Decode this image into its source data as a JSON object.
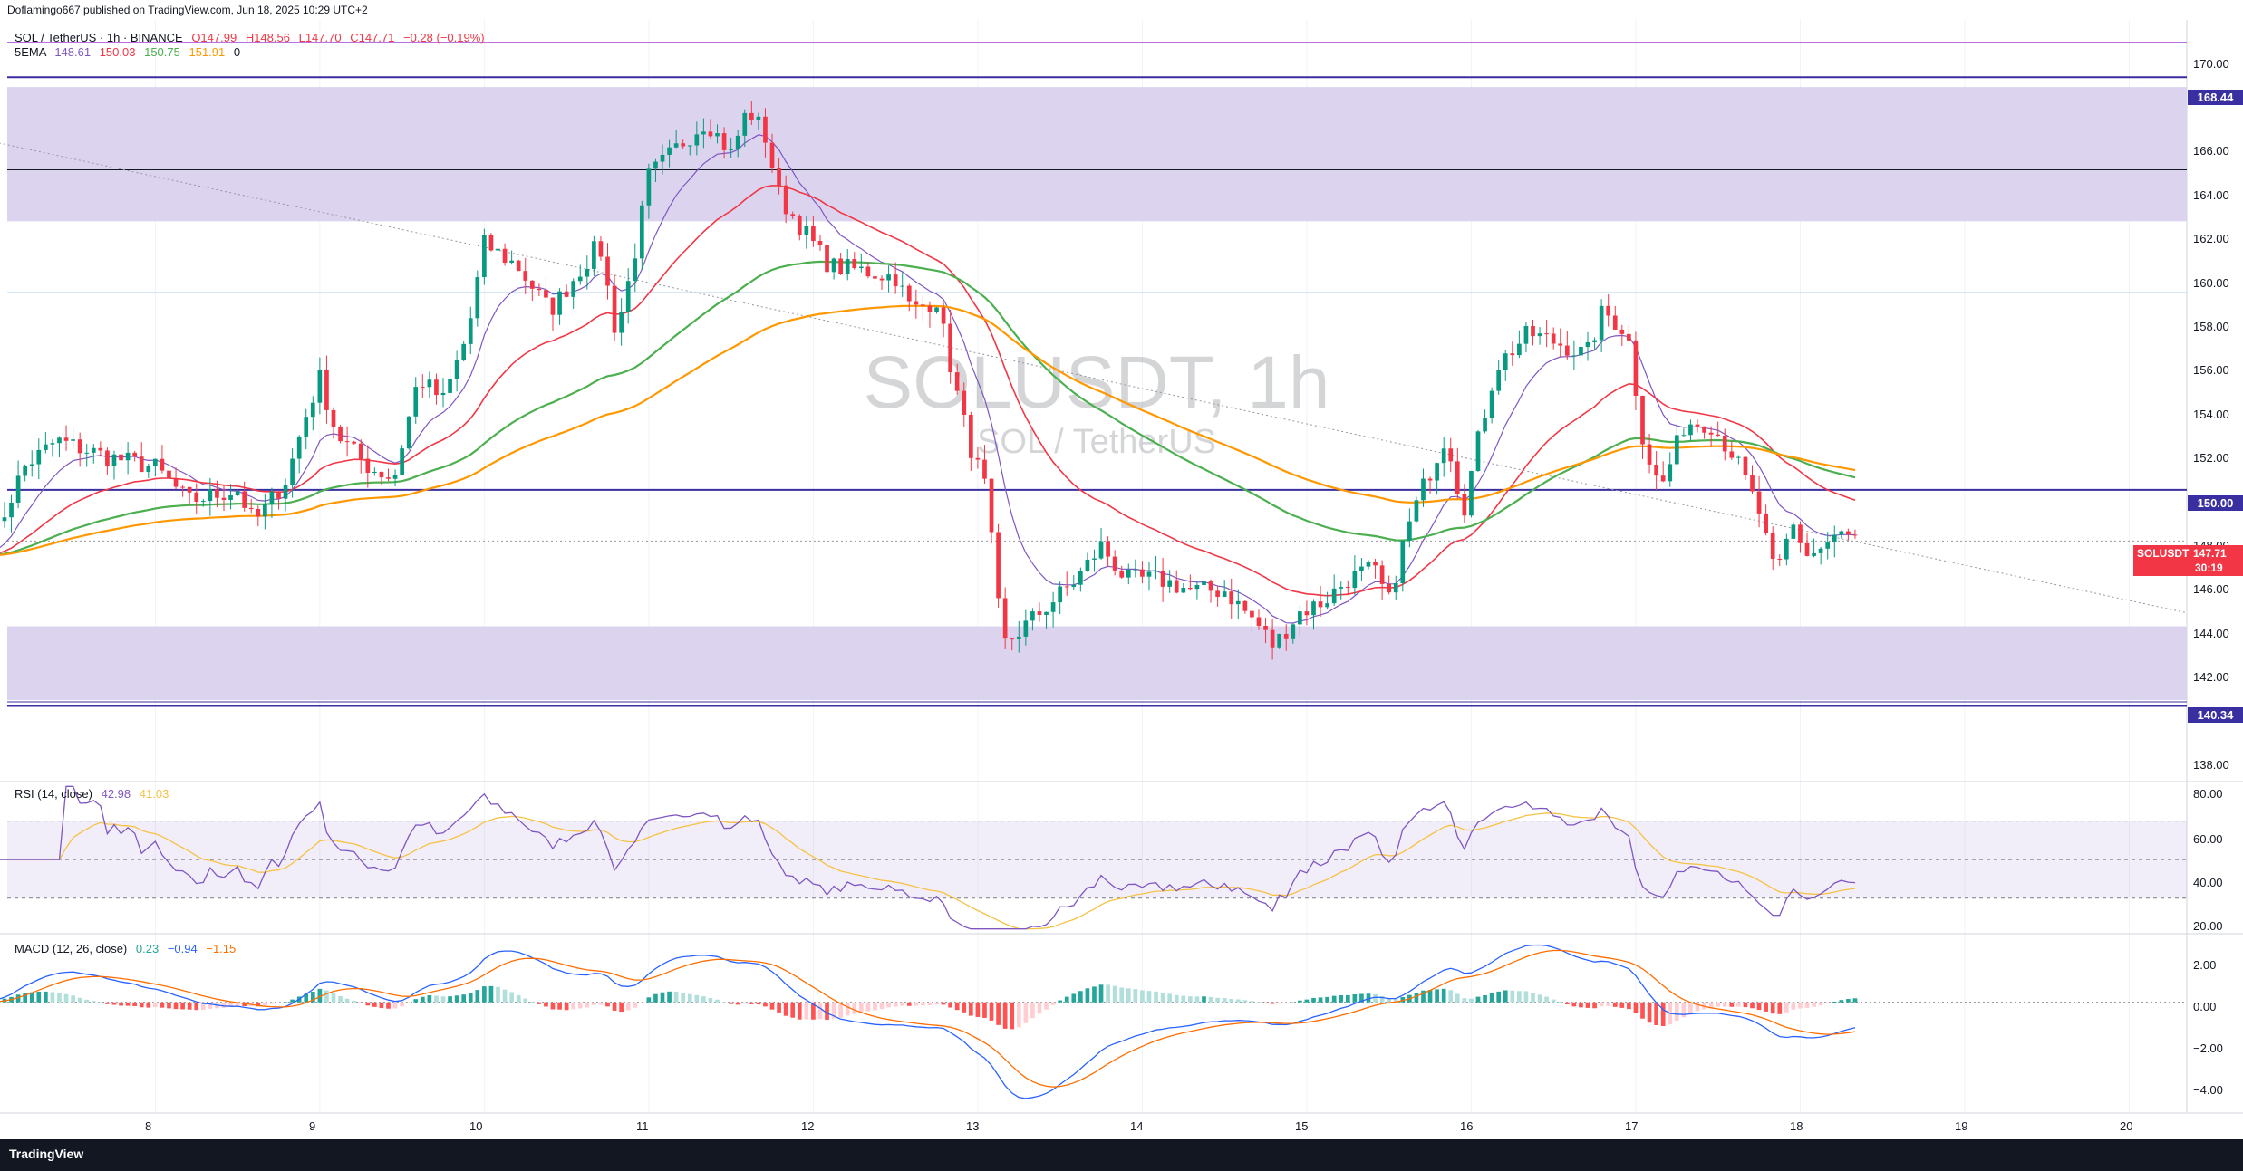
{
  "publisher": "Doflamingo667 published on TradingView.com, Jun 18, 2025 10:29 UTC+2",
  "legend": {
    "symbol": "SOL / TetherUS · 1h · BINANCE",
    "open": "O147.99",
    "high": "H148.56",
    "low": "L147.70",
    "close": "C147.71",
    "change": "−0.28 (−0.19%)",
    "ema_label": "5EMA",
    "ema_values": [
      "148.61",
      "150.03",
      "150.75",
      "151.91",
      "0"
    ]
  },
  "watermark": {
    "symbol": "SOLUSDT, 1h",
    "name": "SOL / TetherUS"
  },
  "colors": {
    "up": "#089981",
    "down": "#f23645",
    "zone": "#dcd3ef",
    "level": "#3a2fa0",
    "ema_fast": "#7e57c2",
    "ema_red": "#f23645",
    "ema_green": "#4caf50",
    "ema_orange": "#ff9800",
    "rsi": "#7e57c2",
    "rsi_ma": "#f6c244",
    "macd": "#2962ff",
    "signal": "#ff6d00"
  },
  "price_axis": [
    "170.00",
    "166.00",
    "164.00",
    "162.00",
    "160.00",
    "158.00",
    "156.00",
    "154.00",
    "152.00",
    "148.00",
    "146.00",
    "144.00",
    "142.00",
    "138.00"
  ],
  "level_badges": [
    "168.44",
    "150.00",
    "140.34"
  ],
  "price_badge": {
    "symbol": "SOLUSDT",
    "price": "147.71",
    "timer": "30:19"
  },
  "rsi": {
    "label": "RSI (14, close)",
    "value": "42.98",
    "ma": "41.03",
    "axis": [
      "80.00",
      "60.00",
      "40.00",
      "20.00"
    ]
  },
  "macd": {
    "label": "MACD (12, 26, close)",
    "hist": "0.23",
    "macd": "−0.94",
    "signal": "−1.15",
    "axis": [
      "2.00",
      "0.00",
      "−2.00",
      "−4.00"
    ]
  },
  "time_axis": [
    "8",
    "9",
    "10",
    "11",
    "12",
    "13",
    "14",
    "15",
    "16",
    "17",
    "18",
    "19",
    "20"
  ],
  "footer": "TradingView",
  "chart_data": {
    "type": "candlestick",
    "title": "SOLUSDT, 1h",
    "ylim": [
      137,
      171
    ],
    "x_domain_days": [
      7.1,
      20.35
    ],
    "resistance_zone": [
      162.0,
      168.0
    ],
    "support_zone": [
      140.6,
      143.9
    ],
    "levels": [
      168.44,
      164.3,
      158.8,
      150.0,
      140.34,
      170.0
    ],
    "trendline": {
      "from": [
        7.05,
        165.5
      ],
      "to": [
        20.35,
        144.5
      ]
    },
    "anchors": [
      [
        7.0,
        147.5
      ],
      [
        7.2,
        151.0
      ],
      [
        7.4,
        152.2
      ],
      [
        7.7,
        151.5
      ],
      [
        8.0,
        151.0
      ],
      [
        8.2,
        149.5
      ],
      [
        8.5,
        150.0
      ],
      [
        8.6,
        148.5
      ],
      [
        8.8,
        150.5
      ],
      [
        8.9,
        153.0
      ],
      [
        9.0,
        155.0
      ],
      [
        9.1,
        152.5
      ],
      [
        9.3,
        151.0
      ],
      [
        9.45,
        150.5
      ],
      [
        9.6,
        155.0
      ],
      [
        9.75,
        154.0
      ],
      [
        9.9,
        157.0
      ],
      [
        10.0,
        161.0
      ],
      [
        10.2,
        160.0
      ],
      [
        10.4,
        158.0
      ],
      [
        10.55,
        159.5
      ],
      [
        10.7,
        161.0
      ],
      [
        10.8,
        157.0
      ],
      [
        10.9,
        160.0
      ],
      [
        11.0,
        164.0
      ],
      [
        11.2,
        165.5
      ],
      [
        11.35,
        166.5
      ],
      [
        11.5,
        165.0
      ],
      [
        11.6,
        167.0
      ],
      [
        11.7,
        166.0
      ],
      [
        11.8,
        163.0
      ],
      [
        11.95,
        161.5
      ],
      [
        12.1,
        160.0
      ],
      [
        12.3,
        159.8
      ],
      [
        12.5,
        159.5
      ],
      [
        12.6,
        158.0
      ],
      [
        12.75,
        158.5
      ],
      [
        12.85,
        155.0
      ],
      [
        12.95,
        152.0
      ],
      [
        13.05,
        150.0
      ],
      [
        13.15,
        143.0
      ],
      [
        13.3,
        144.0
      ],
      [
        13.45,
        145.0
      ],
      [
        13.6,
        146.0
      ],
      [
        13.75,
        147.5
      ],
      [
        13.9,
        146.0
      ],
      [
        14.1,
        146.0
      ],
      [
        14.3,
        145.5
      ],
      [
        14.5,
        145.5
      ],
      [
        14.7,
        144.0
      ],
      [
        14.8,
        143.0
      ],
      [
        14.95,
        144.5
      ],
      [
        15.1,
        145.0
      ],
      [
        15.25,
        146.0
      ],
      [
        15.4,
        146.5
      ],
      [
        15.5,
        145.0
      ],
      [
        15.6,
        148.0
      ],
      [
        15.7,
        150.0
      ],
      [
        15.85,
        152.5
      ],
      [
        15.95,
        149.0
      ],
      [
        16.05,
        152.5
      ],
      [
        16.15,
        155.5
      ],
      [
        16.35,
        157.0
      ],
      [
        16.55,
        156.5
      ],
      [
        16.7,
        156.0
      ],
      [
        16.8,
        158.0
      ],
      [
        16.95,
        157.0
      ],
      [
        17.05,
        152.0
      ],
      [
        17.15,
        150.0
      ],
      [
        17.3,
        153.0
      ],
      [
        17.45,
        153.0
      ],
      [
        17.6,
        151.5
      ],
      [
        17.75,
        149.0
      ],
      [
        17.85,
        146.0
      ],
      [
        17.95,
        148.5
      ],
      [
        18.05,
        147.0
      ],
      [
        18.15,
        147.5
      ],
      [
        18.25,
        148.0
      ],
      [
        18.35,
        147.7
      ]
    ]
  }
}
